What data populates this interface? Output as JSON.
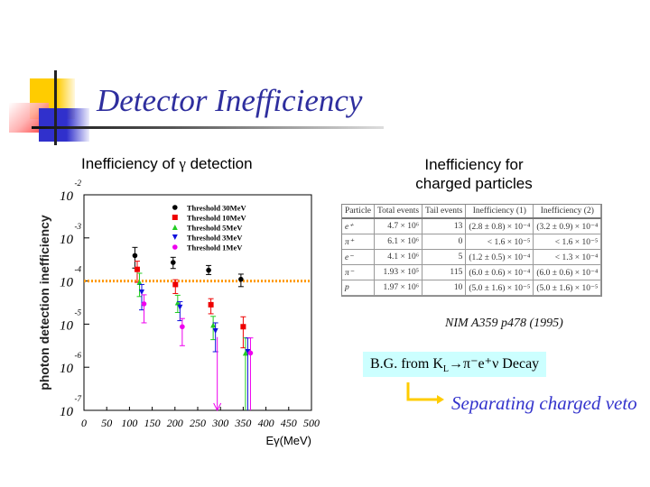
{
  "title": "Detector Inefficiency",
  "left_heading_pre": "Inefficiency of ",
  "left_heading_sym": "γ",
  "left_heading_post": " detection",
  "right_heading": [
    "Inefficiency for",
    "charged particles"
  ],
  "table": {
    "headers": [
      "Particle",
      "Total events",
      "Tail events",
      "Inefficiency (1)",
      "Inefficiency (2)"
    ],
    "rows": [
      [
        "e⁺",
        "4.7 × 10⁶",
        "13",
        "(2.8 ± 0.8) × 10⁻⁴",
        "(3.2 ± 0.9) × 10⁻⁴"
      ],
      [
        "π⁺",
        "6.1 × 10⁶",
        "0",
        "< 1.6 × 10⁻⁵",
        "< 1.6 × 10⁻⁵"
      ],
      [
        "e⁻",
        "4.1 × 10⁶",
        "5",
        "(1.2 ± 0.5) × 10⁻⁴",
        "< 1.3 × 10⁻⁴"
      ],
      [
        "π⁻",
        "1.93 × 10⁵",
        "115",
        "(6.0 ± 0.6) × 10⁻⁴",
        "(6.0 ± 0.6) × 10⁻⁴"
      ],
      [
        "p",
        "1.97 × 10⁶",
        "10",
        "(5.0 ± 1.6) × 10⁻⁵",
        "(5.0 ± 1.6) × 10⁻⁵"
      ]
    ]
  },
  "reference": "NIM A359 p478 (1995)",
  "bg_label": "B.G. from K_L→π⁻e⁺ν Decay",
  "bg_parts": {
    "pre": "B.G. from K",
    "sub": "L",
    "post": "→π⁻e⁺ν Decay"
  },
  "arrow_text": "Separating charged veto",
  "colors": {
    "title": "#2e2e9e",
    "bg_box": "#ccffff",
    "arrow": "#ffcc00",
    "reference_line": "#ff9900"
  },
  "chart_data": {
    "type": "scatter",
    "xlabel": "Eγ(MeV)",
    "ylabel": "photon detection inefficiency",
    "xlim": [
      0,
      500
    ],
    "ylim_log10": [
      -7,
      -2
    ],
    "yscale": "log",
    "xticks": [
      0,
      50,
      100,
      150,
      200,
      250,
      300,
      350,
      400,
      450,
      500
    ],
    "yticks": [
      -2,
      -3,
      -4,
      -5,
      -6,
      -7
    ],
    "ytick_base": "10",
    "reference_line_log10": -4,
    "legend_position": "top-right",
    "series": [
      {
        "name": "Threshold 30MeV",
        "color": "#000000",
        "marker": "circle",
        "points": [
          [
            112,
            -3.41,
            -3.22,
            -3.7
          ],
          [
            196,
            -3.57,
            -3.45,
            -3.71
          ],
          [
            274,
            -3.75,
            -3.64,
            -3.85
          ],
          [
            345,
            -3.96,
            -3.84,
            -4.13
          ]
        ]
      },
      {
        "name": "Threshold 10MeV",
        "color": "#ee0000",
        "marker": "square",
        "points": [
          [
            117,
            -3.73,
            -3.54,
            -4.03
          ],
          [
            201,
            -4.08,
            -3.97,
            -4.29
          ],
          [
            279,
            -4.55,
            -4.41,
            -4.76
          ],
          [
            350,
            -5.06,
            -4.83,
            -5.55
          ]
        ]
      },
      {
        "name": "Threshold 5MeV",
        "color": "#22cc22",
        "marker": "triangle-up",
        "points": [
          [
            122,
            -4.03,
            -3.82,
            -4.36
          ],
          [
            206,
            -4.5,
            -4.33,
            -4.73
          ],
          [
            284,
            -5.02,
            -4.82,
            -5.36
          ],
          [
            355,
            -5.67,
            -5.32,
            -7
          ]
        ]
      },
      {
        "name": "Threshold 3MeV",
        "color": "#1010dd",
        "marker": "triangle-down",
        "points": [
          [
            127,
            -4.26,
            -4.08,
            -4.67
          ],
          [
            211,
            -4.61,
            -4.48,
            -4.92
          ],
          [
            289,
            -5.16,
            -4.97,
            -5.64
          ],
          [
            360,
            -5.64,
            -5.32,
            -7
          ]
        ]
      },
      {
        "name": "Threshold 1MeV",
        "color": "#ee00ee",
        "marker": "circle",
        "points": [
          [
            132,
            -4.53,
            -4.32,
            -4.97
          ],
          [
            216,
            -5.06,
            -4.87,
            -5.5
          ],
          [
            366,
            -5.67,
            -5.32,
            -7
          ]
        ],
        "upper_limits": [
          [
            293,
            -5.3
          ]
        ]
      }
    ]
  }
}
